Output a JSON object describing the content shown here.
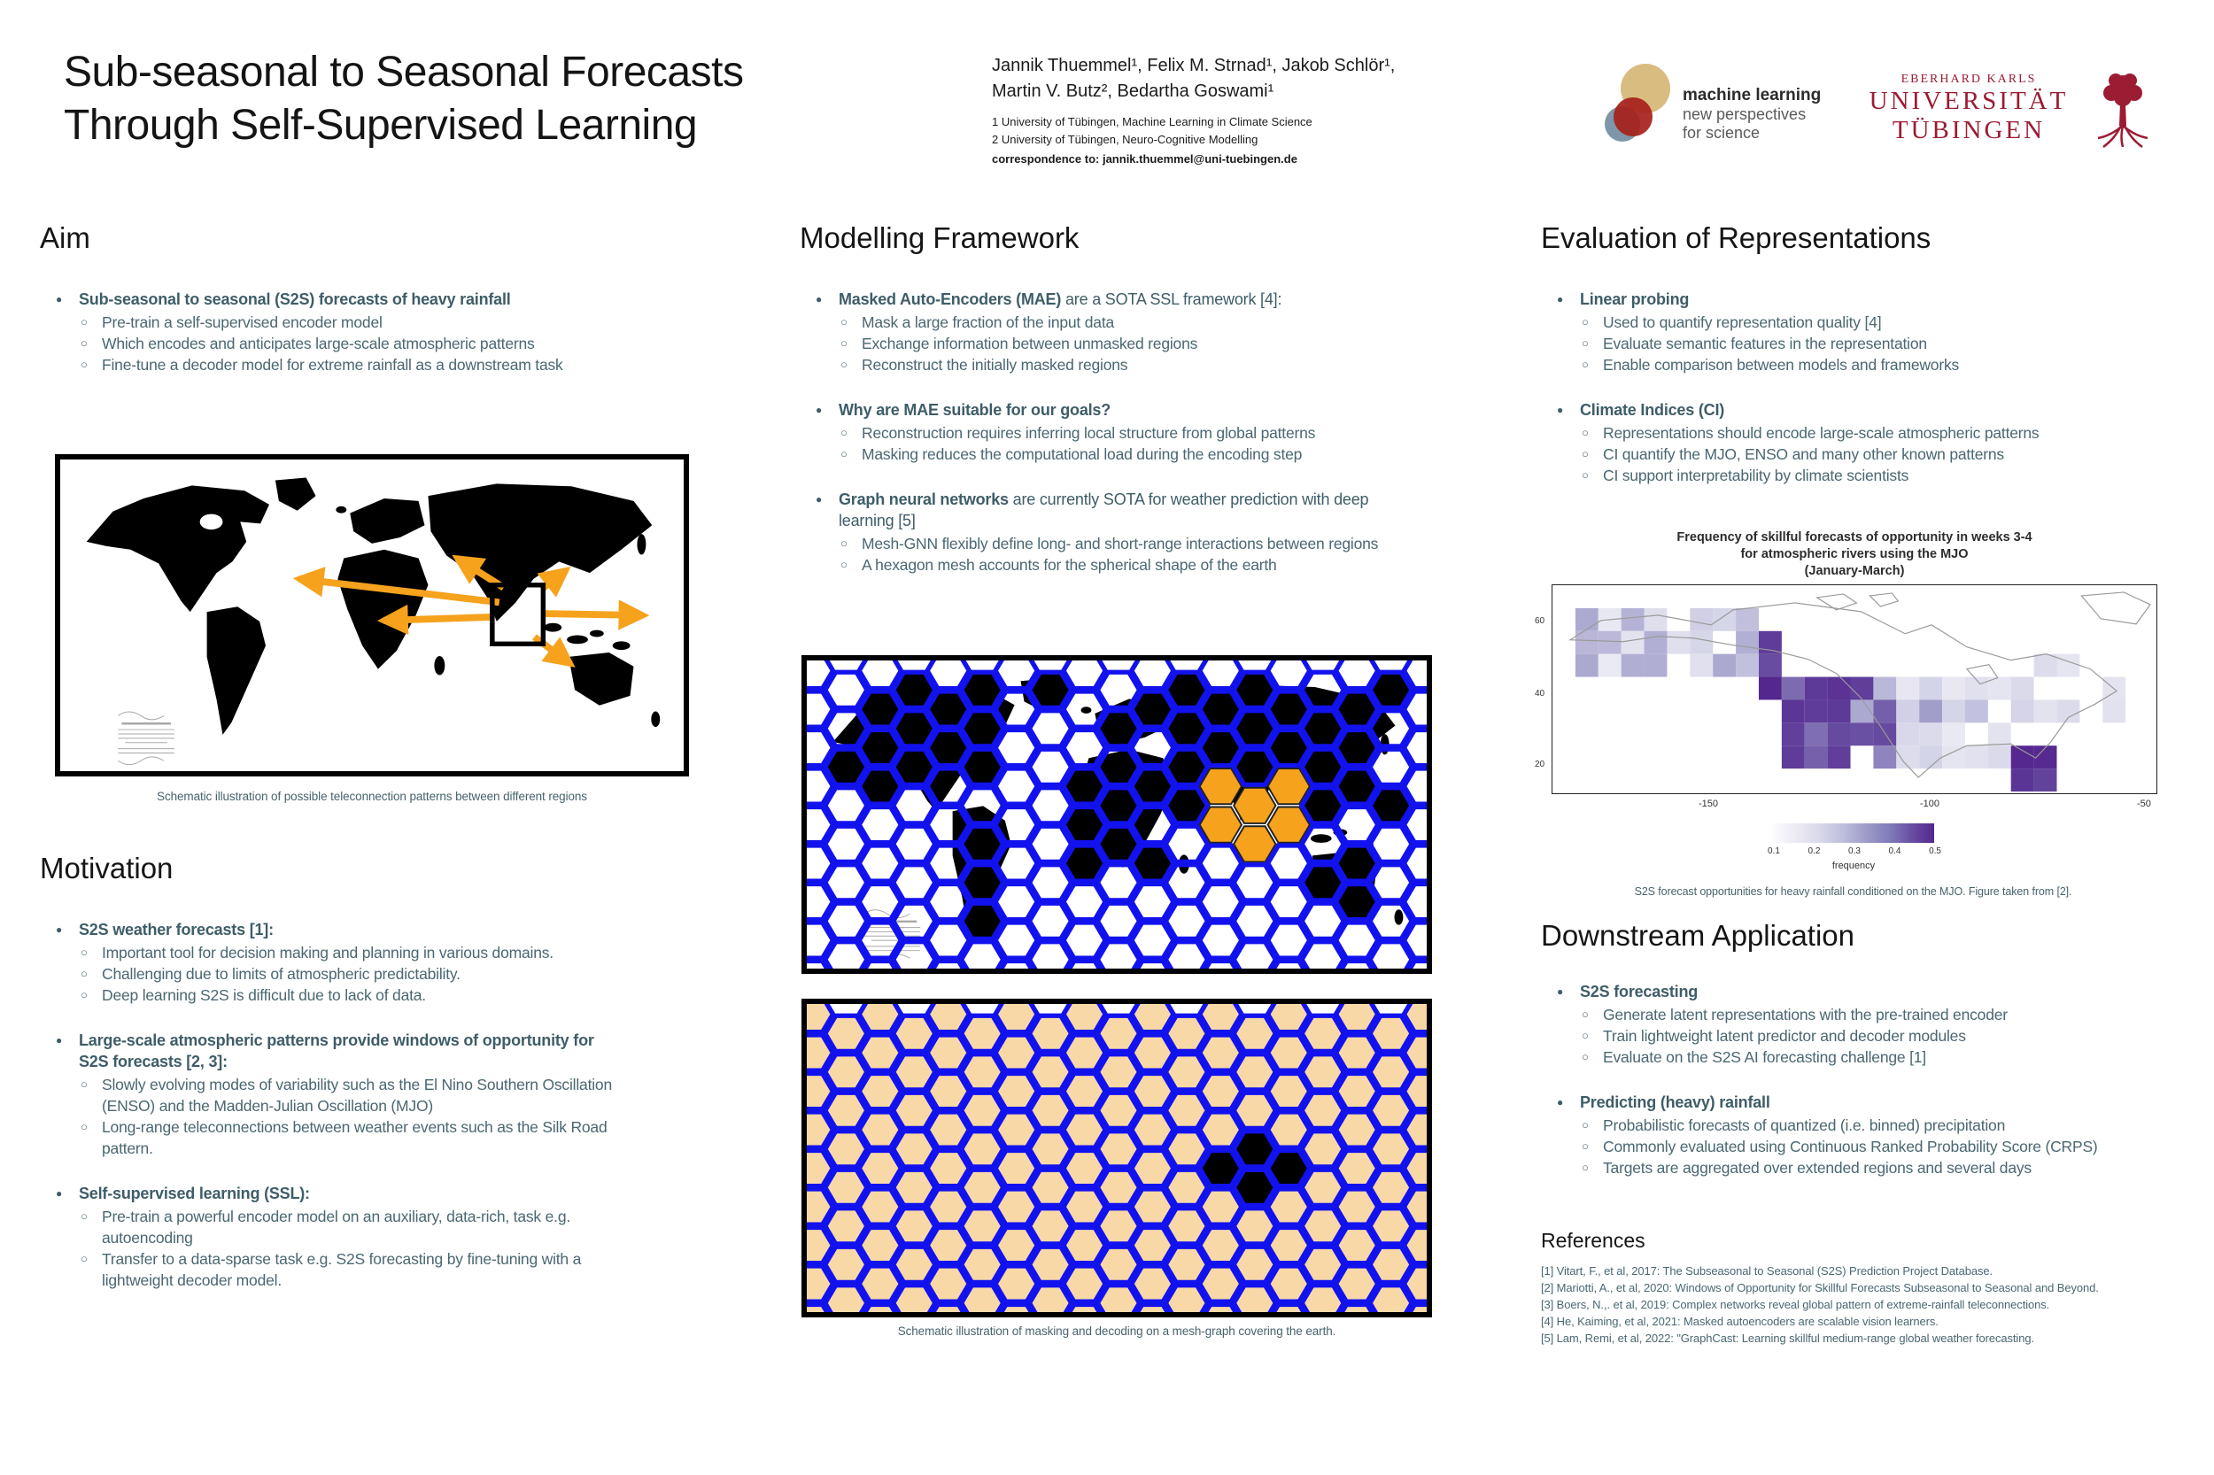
{
  "header": {
    "title_line1": "Sub-seasonal to Seasonal Forecasts",
    "title_line2": "Through Self-Supervised Learning",
    "authors_line1": "Jannik Thuemmel¹, Felix M. Strnad¹, Jakob Schlör¹,",
    "authors_line2": "Martin V. Butz², Bedartha Goswami¹",
    "affiliation1": "1 University of Tübingen, Machine Learning in Climate Science",
    "affiliation2": "2 University of Tübingen, Neuro-Cognitive Modelling",
    "correspondence": "correspondence to:  jannik.thuemmel@uni-tuebingen.de",
    "ml_logo": {
      "line1": "machine learning",
      "line2": "new perspectives",
      "line3": "for science"
    },
    "uni_logo": {
      "line1": "EBERHARD KARLS",
      "line2": "UNIVERSITÄT",
      "line3": "TÜBINGEN"
    }
  },
  "aim": {
    "heading": "Aim",
    "lead": "Sub-seasonal to seasonal (S2S)  forecasts of heavy rainfall",
    "subs": [
      "Pre-train a self-supervised encoder model",
      "Which encodes and anticipates large-scale atmospheric patterns",
      "Fine-tune a decoder model for extreme rainfall as a downstream task"
    ],
    "figure_caption": "Schematic illustration of possible teleconnection patterns between different regions"
  },
  "motivation": {
    "heading": "Motivation",
    "groups": [
      {
        "lead": "S2S weather forecasts [1]:",
        "subs": [
          "Important tool for decision making and planning in various domains.",
          "Challenging due to limits of atmospheric predictability.",
          "Deep learning S2S is difficult due to lack of data."
        ]
      },
      {
        "lead": "Large-scale atmospheric patterns provide windows of opportunity for S2S forecasts [2, 3]:",
        "subs": [
          "Slowly evolving modes of variability such as the El Nino Southern Oscillation (ENSO) and the Madden-Julian Oscillation (MJO)",
          "Long-range teleconnections between weather events such as the Silk Road pattern."
        ]
      },
      {
        "lead": "Self-supervised learning (SSL):",
        "subs": [
          "Pre-train a powerful encoder model on an auxiliary, data-rich, task e.g. autoencoding",
          "Transfer to a data-sparse task e.g. S2S forecasting by fine-tuning with a lightweight decoder model."
        ]
      }
    ]
  },
  "modelling": {
    "heading": "Modelling Framework",
    "groups": [
      {
        "lead_bold": "Masked Auto-Encoders (MAE)",
        "lead_rest": "  are a SOTA SSL framework [4]:",
        "subs": [
          "Mask a large fraction of the input data",
          "Exchange information between unmasked regions",
          "Reconstruct  the initially masked regions"
        ]
      },
      {
        "lead_bold": "Why are MAE suitable for our goals?",
        "lead_rest": "",
        "subs": [
          "Reconstruction requires inferring local structure from global patterns",
          "Masking reduces the computational load during the encoding step"
        ]
      },
      {
        "lead_bold": "Graph neural networks",
        "lead_rest": " are currently SOTA  for weather prediction with deep learning [5]",
        "subs": [
          "Mesh-GNN flexibly define long- and short-range interactions between regions",
          "A hexagon mesh accounts for the spherical shape of the earth"
        ]
      }
    ],
    "figure_caption": "Schematic illustration of masking and decoding on a mesh-graph covering the earth."
  },
  "evaluation": {
    "heading": "Evaluation of Representations",
    "groups": [
      {
        "lead": "Linear probing",
        "subs": [
          "Used to quantify representation quality [4]",
          "Evaluate semantic features in the representation",
          "Enable comparison between models and frameworks"
        ]
      },
      {
        "lead": "Climate Indices (CI)",
        "subs": [
          "Representations should encode large-scale atmospheric patterns",
          "CI quantify the MJO, ENSO and many other known patterns",
          "CI support interpretability by climate scientists"
        ]
      }
    ],
    "figure": {
      "title_line1": "Frequency of skillful forecasts of opportunity in weeks 3-4",
      "title_line2": "for atmospheric rivers using the MJO",
      "title_line3": "(January-March)",
      "x_ticks": [
        "-150",
        "-100",
        "-50"
      ],
      "y_ticks": [
        "60",
        "40",
        "20"
      ],
      "colorbar_ticks": [
        "0.1",
        "0.2",
        "0.3",
        "0.4",
        "0.5"
      ],
      "colorbar_label": "frequency",
      "caption": "S2S forecast opportunities for heavy rainfall conditioned on the MJO. Figure taken from [2]."
    }
  },
  "downstream": {
    "heading": "Downstream Application",
    "groups": [
      {
        "lead": "S2S forecasting",
        "subs": [
          "Generate latent representations with the pre-trained encoder",
          "Train lightweight latent predictor and decoder modules",
          "Evaluate on the S2S AI forecasting challenge [1]"
        ]
      },
      {
        "lead": "Predicting (heavy) rainfall",
        "subs": [
          "Probabilistic forecasts of quantized (i.e. binned) precipitation",
          "Commonly evaluated using Continuous Ranked Probability Score (CRPS)",
          "Targets are aggregated over extended regions and several days"
        ]
      }
    ]
  },
  "references": {
    "heading": "References",
    "items": [
      "[1] Vitart, F., et al, 2017: The Subseasonal to Seasonal (S2S) Prediction Project Database.",
      "[2] Mariotti, A., et al, 2020: Windows of Opportunity for Skillful Forecasts Subseasonal to Seasonal and Beyond.",
      "[3] Boers, N.,. et al, 2019: Complex networks reveal global pattern of extreme-rainfall teleconnections.",
      "[4] He, Kaiming, et al, 2021: Masked autoencoders are scalable vision learners.",
      "[5] Lam, Remi, et al, 2022: \"GraphCast: Learning skillful medium-range global weather forecasting."
    ]
  },
  "colors": {
    "accent_orange": "#f6a21d",
    "mesh_blue": "#1212ee",
    "masked_black": "#000000",
    "decoded_peach": "#f8d8a6",
    "body_text": "#46636e",
    "uni_red": "#9b1c33",
    "heat_dark": "#54278f"
  }
}
